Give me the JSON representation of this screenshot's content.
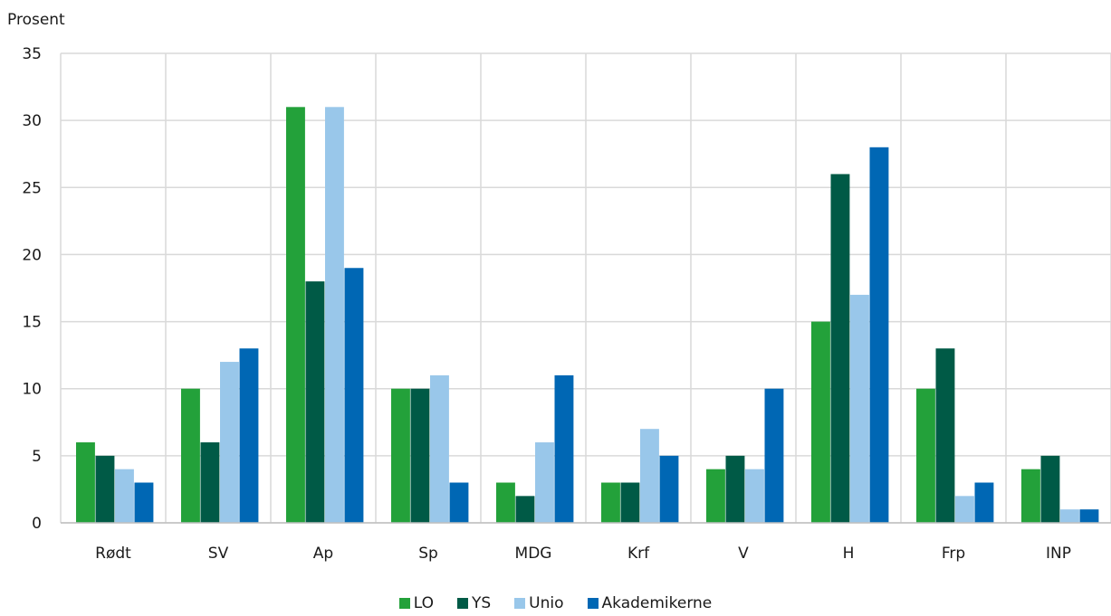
{
  "chart_data": {
    "type": "bar",
    "ylabel": "Prosent",
    "ylim": [
      0,
      35
    ],
    "yticks": [
      0,
      5,
      10,
      15,
      20,
      25,
      30,
      35
    ],
    "categories": [
      "Rødt",
      "SV",
      "Ap",
      "Sp",
      "MDG",
      "Krf",
      "V",
      "H",
      "Frp",
      "INP"
    ],
    "series": [
      {
        "name": "LO",
        "color": "#23a13a",
        "values": [
          6,
          10,
          31,
          10,
          3,
          3,
          4,
          15,
          10,
          4
        ]
      },
      {
        "name": "YS",
        "color": "#005a46",
        "values": [
          5,
          6,
          18,
          10,
          2,
          3,
          5,
          26,
          13,
          5
        ]
      },
      {
        "name": "Unio",
        "color": "#99c7ea",
        "values": [
          4,
          12,
          31,
          11,
          6,
          7,
          4,
          17,
          2,
          1
        ]
      },
      {
        "name": "Akademikerne",
        "color": "#0067b4",
        "values": [
          3,
          13,
          19,
          3,
          11,
          5,
          10,
          28,
          3,
          1
        ]
      }
    ],
    "grid": true,
    "legend_position": "bottom"
  }
}
